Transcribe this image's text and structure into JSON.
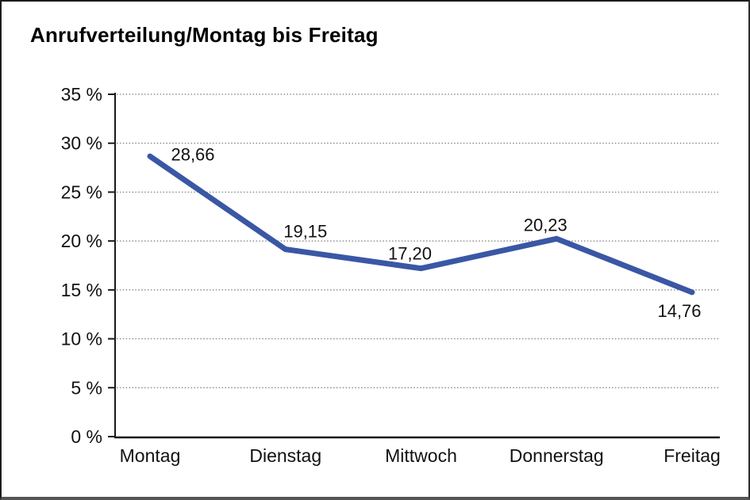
{
  "window": {
    "background": "#ffffff",
    "frame_border_color": "#1c1c1c"
  },
  "chart_data": {
    "type": "line",
    "title": "Anrufverteilung/Montag bis Freitag",
    "categories": [
      "Montag",
      "Dienstag",
      "Mittwoch",
      "Donnerstag",
      "Freitag"
    ],
    "series": [
      {
        "name": "Anrufverteilung",
        "values": [
          28.66,
          19.15,
          17.2,
          20.23,
          14.76
        ],
        "point_labels": [
          "28,66",
          "19,15",
          "17,20",
          "20,23",
          "14,76"
        ]
      }
    ],
    "xlabel": "",
    "ylabel": "",
    "ylim": [
      0,
      35
    ],
    "ytick_step": 5,
    "ytick_labels": [
      "0 %",
      "5 %",
      "10 %",
      "15 %",
      "20 %",
      "25 %",
      "30 %",
      "35 %"
    ],
    "grid": "horizontal-dotted",
    "legend": "none",
    "colors": {
      "line": "#3A57A5",
      "axis": "#1a1a1a",
      "gridline": "#7a7a7a",
      "text": "#111111"
    }
  }
}
